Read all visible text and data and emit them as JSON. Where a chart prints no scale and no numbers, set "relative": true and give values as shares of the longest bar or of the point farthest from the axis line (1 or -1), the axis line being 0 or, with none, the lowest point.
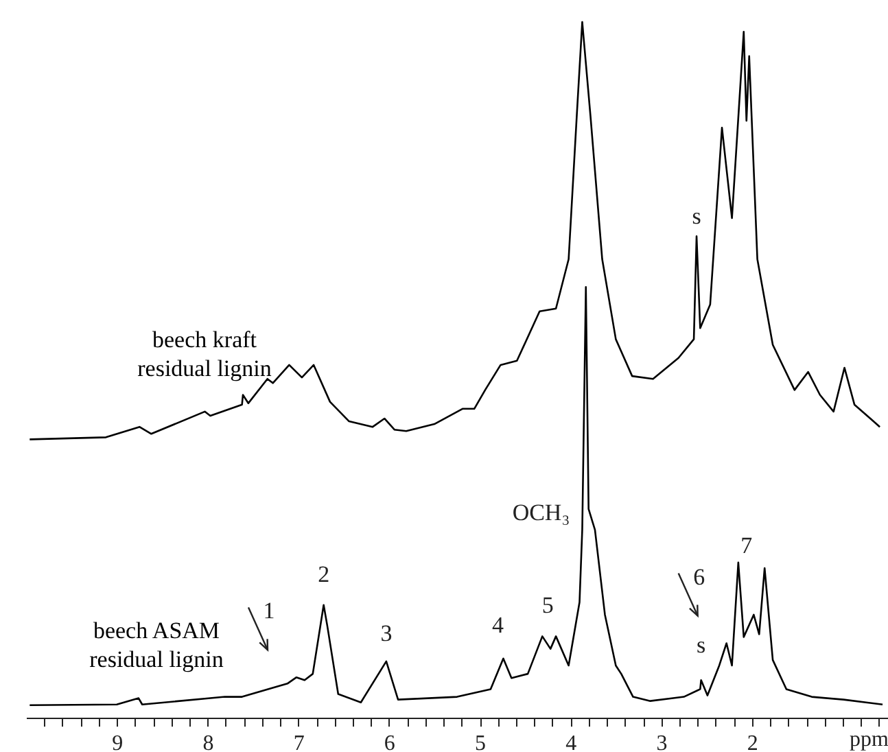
{
  "chart_data": {
    "type": "line",
    "relative": true,
    "xlabel": "ppm",
    "xlim": [
      10,
      0.5
    ],
    "xticks": [
      {
        "value": 9.8,
        "label": null
      },
      {
        "value": 9.6,
        "label": null
      },
      {
        "value": 9.4,
        "label": null
      },
      {
        "value": 9.2,
        "label": null
      },
      9,
      {
        "value": 8.8,
        "label": null
      },
      {
        "value": 8.6,
        "label": null
      },
      {
        "value": 8.4,
        "label": null
      },
      {
        "value": 8.2,
        "label": null
      },
      8,
      {
        "value": 7.8,
        "label": null
      },
      {
        "value": 7.6,
        "label": null
      },
      {
        "value": 7.4,
        "label": null
      },
      {
        "value": 7.2,
        "label": null
      },
      7,
      {
        "value": 6.8,
        "label": null
      },
      {
        "value": 6.6,
        "label": null
      },
      {
        "value": 6.4,
        "label": null
      },
      {
        "value": 6.2,
        "label": null
      },
      6,
      {
        "value": 5.8,
        "label": null
      },
      {
        "value": 5.6,
        "label": null
      },
      {
        "value": 5.4,
        "label": null
      },
      {
        "value": 5.2,
        "label": null
      },
      5,
      {
        "value": 4.8,
        "label": null
      },
      {
        "value": 4.6,
        "label": null
      },
      {
        "value": 4.4,
        "label": null
      },
      {
        "value": 4.2,
        "label": null
      },
      4,
      {
        "value": 3.8,
        "label": null
      },
      {
        "value": 3.6,
        "label": null
      },
      {
        "value": 3.4,
        "label": null
      },
      {
        "value": 3.2,
        "label": null
      },
      3,
      {
        "value": 2.8,
        "label": null
      },
      {
        "value": 2.6,
        "label": null
      },
      {
        "value": 2.4,
        "label": null
      },
      {
        "value": 2.2,
        "label": null
      },
      2,
      {
        "value": 1.8,
        "label": null
      },
      {
        "value": 1.6,
        "label": null
      },
      {
        "value": 1.4,
        "label": null
      },
      {
        "value": 1.2,
        "label": null
      },
      {
        "value": 1,
        "label": null
      },
      {
        "value": 0.8,
        "label": null
      },
      {
        "value": 0.6,
        "label": null
      }
    ],
    "series": [
      {
        "name": "beech kraft residual lignin",
        "color": "#000000",
        "x": [
          9.96,
          9.12,
          8.75,
          8.62,
          8.03,
          7.97,
          7.62,
          7.61,
          7.55,
          7.34,
          7.28,
          7.1,
          6.96,
          6.83,
          6.65,
          6.44,
          6.18,
          6.05,
          5.94,
          5.81,
          5.5,
          5.19,
          5.06,
          4.94,
          4.77,
          4.59,
          4.34,
          4.16,
          4.02,
          3.93,
          3.87,
          3.78,
          3.65,
          3.5,
          3.32,
          3.09,
          2.81,
          2.64,
          2.61,
          2.57,
          2.46,
          2.33,
          2.22,
          2.09,
          2.06,
          2.03,
          1.94,
          1.77,
          1.53,
          1.38,
          1.25,
          1.1,
          0.98,
          0.87,
          0.59
        ],
        "values": [
          0.4,
          0.403,
          0.418,
          0.408,
          0.44,
          0.434,
          0.45,
          0.464,
          0.452,
          0.487,
          0.481,
          0.507,
          0.489,
          0.507,
          0.454,
          0.426,
          0.418,
          0.43,
          0.414,
          0.412,
          0.422,
          0.444,
          0.444,
          0.471,
          0.507,
          0.513,
          0.584,
          0.588,
          0.659,
          0.866,
          1.0,
          0.866,
          0.659,
          0.544,
          0.491,
          0.487,
          0.517,
          0.544,
          0.692,
          0.56,
          0.594,
          0.848,
          0.718,
          0.986,
          0.858,
          0.951,
          0.659,
          0.536,
          0.471,
          0.497,
          0.464,
          0.44,
          0.503,
          0.45,
          0.418
        ]
      },
      {
        "name": "beech ASAM residual lignin",
        "color": "#000000",
        "x": [
          9.96,
          9.0,
          8.76,
          8.72,
          7.81,
          7.62,
          7.12,
          7.02,
          6.93,
          6.84,
          6.72,
          6.68,
          6.56,
          6.31,
          6.03,
          5.9,
          5.25,
          4.88,
          4.74,
          4.65,
          4.47,
          4.31,
          4.22,
          4.16,
          4.02,
          3.9,
          3.87,
          3.83,
          3.8,
          3.73,
          3.62,
          3.5,
          3.44,
          3.31,
          3.12,
          2.75,
          2.57,
          2.56,
          2.49,
          2.36,
          2.28,
          2.22,
          2.15,
          2.09,
          1.98,
          1.92,
          1.86,
          1.77,
          1.62,
          1.34,
          0.99,
          0.56
        ],
        "values": [
          0.018,
          0.019,
          0.028,
          0.019,
          0.03,
          0.03,
          0.049,
          0.058,
          0.054,
          0.063,
          0.162,
          0.132,
          0.034,
          0.022,
          0.081,
          0.026,
          0.03,
          0.041,
          0.085,
          0.057,
          0.063,
          0.117,
          0.099,
          0.117,
          0.075,
          0.166,
          0.27,
          0.619,
          0.3,
          0.27,
          0.148,
          0.075,
          0.063,
          0.03,
          0.024,
          0.03,
          0.041,
          0.054,
          0.032,
          0.075,
          0.107,
          0.075,
          0.223,
          0.116,
          0.148,
          0.12,
          0.215,
          0.083,
          0.041,
          0.03,
          0.026,
          0.019
        ]
      }
    ],
    "annotations": [
      {
        "text": "1",
        "x": 7.02,
        "y": 0.058
      },
      {
        "text": "2",
        "x": 6.72,
        "y": 0.162
      },
      {
        "text": "3",
        "x": 6.03,
        "y": 0.081
      },
      {
        "text": "4",
        "x": 4.74,
        "y": 0.085
      },
      {
        "text": "5",
        "x": 4.31,
        "y": 0.117
      },
      {
        "text": "OCH₃",
        "x": 3.87,
        "y": 0.27
      },
      {
        "text": "s",
        "x": 2.61,
        "y": 0.692
      },
      {
        "text": "s",
        "x": 2.56,
        "y": 0.054
      },
      {
        "text": "6",
        "x": 2.28,
        "y": 0.107
      },
      {
        "text": "7",
        "x": 2.15,
        "y": 0.223
      }
    ]
  }
}
